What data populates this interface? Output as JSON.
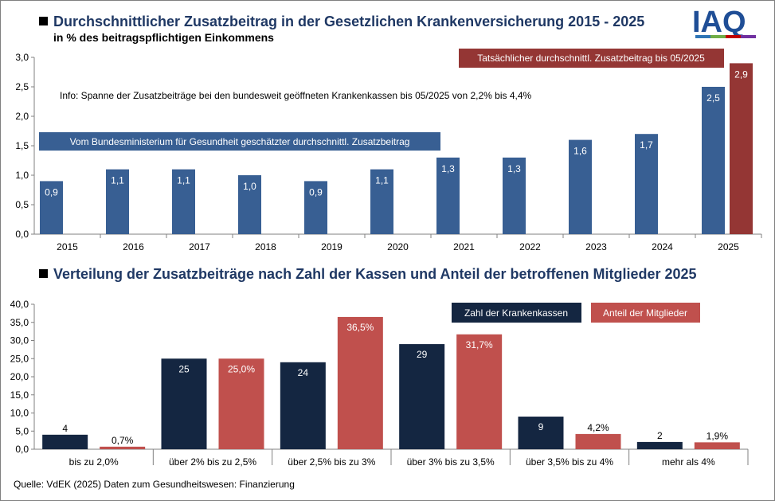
{
  "logo": {
    "text": "IAQ",
    "colors": {
      "text": "#1f4e96",
      "stripes": [
        "#2e75b6",
        "#70ad47",
        "#c00000",
        "#7030a0"
      ]
    }
  },
  "source": "Quelle: VdEK (2025) Daten zum Gesundheitswesen: Finanzierung",
  "colors": {
    "blue": "#385f93",
    "darkred": "#943634",
    "navy": "#142641",
    "red": "#c0504d",
    "title": "#1f3864"
  },
  "chart_data": [
    {
      "type": "bar",
      "title": "Durchschnittlicher Zusatzbeitrag in der Gesetzlichen Krankenversicherung 2015 - 2025",
      "subtitle": "in % des beitragspflichtigen Einkommens",
      "categories": [
        "2015",
        "2016",
        "2017",
        "2018",
        "2019",
        "2020",
        "2021",
        "2022",
        "2023",
        "2024",
        "2025"
      ],
      "series": [
        {
          "name": "Vom Bundesministerium für Gesundheit geschätzter durchschnittl. Zusatzbeitrag",
          "color": "#385f93",
          "values": [
            0.9,
            1.1,
            1.1,
            1.0,
            0.9,
            1.1,
            1.3,
            1.3,
            1.6,
            1.7,
            2.5
          ],
          "labels": [
            "0,9",
            "1,1",
            "1,1",
            "1,0",
            "0,9",
            "1,1",
            "1,3",
            "1,3",
            "1,6",
            "1,7",
            "2,5"
          ]
        },
        {
          "name": "Tatsächlicher durchschnittl. Zusatzbeitrag bis 05/2025",
          "color": "#943634",
          "values": [
            null,
            null,
            null,
            null,
            null,
            null,
            null,
            null,
            null,
            null,
            2.9
          ],
          "labels": [
            "",
            "",
            "",
            "",
            "",
            "",
            "",
            "",
            "",
            "",
            "2,9"
          ]
        }
      ],
      "ylim": [
        0,
        3.0
      ],
      "yticks": [
        "0,0",
        "0,5",
        "1,0",
        "1,5",
        "2,0",
        "2,5",
        "3,0"
      ],
      "annotation": "Info: Spanne der Zusatzbeiträge bei den bundesweit geöffneten Krankenkassen bis 05/2025 von 2,2% bis 4,4%",
      "grid": false
    },
    {
      "type": "bar",
      "title": "Verteilung der Zusatzbeiträge nach Zahl der Kassen und Anteil der betroffenen Mitglieder 2025",
      "categories": [
        "bis zu 2,0%",
        "über 2% bis zu 2,5%",
        "über 2,5% bis zu 3%",
        "über 3% bis zu 3,5%",
        "über 3,5% bis zu 4%",
        "mehr als 4%"
      ],
      "series": [
        {
          "name": "Zahl der Krankenkassen",
          "color": "#142641",
          "values": [
            4,
            25,
            24,
            29,
            9,
            2
          ],
          "labels": [
            "4",
            "25",
            "24",
            "29",
            "9",
            "2"
          ]
        },
        {
          "name": "Anteil der Mitglieder",
          "color": "#c0504d",
          "values": [
            0.7,
            25.0,
            36.5,
            31.7,
            4.2,
            1.9
          ],
          "labels": [
            "0,7%",
            "25,0%",
            "36,5%",
            "31,7%",
            "4,2%",
            "1,9%"
          ]
        }
      ],
      "ylim": [
        0,
        40.0
      ],
      "yticks": [
        "0,0",
        "5,0",
        "10,0",
        "15,0",
        "20,0",
        "25,0",
        "30,0",
        "35,0",
        "40,0"
      ],
      "grid": false
    }
  ]
}
